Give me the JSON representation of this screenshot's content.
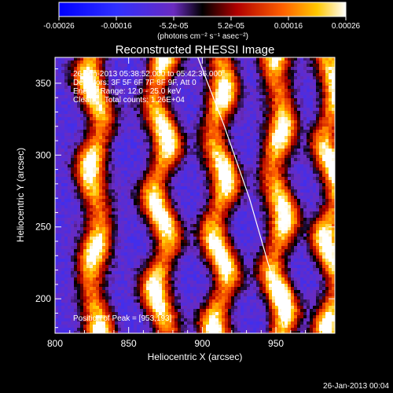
{
  "colorbar": {
    "ticks": [
      "-0.00026",
      "-0.00016",
      "-5.2e-05",
      "5.2e-05",
      "0.00016",
      "0.00026"
    ],
    "units": "(photons cm⁻² s⁻¹ asec⁻²)"
  },
  "chart_data": {
    "type": "heatmap",
    "title": "Reconstructed RHESSI Image",
    "xlabel": "Heliocentric X (arcsec)",
    "ylabel": "Heliocentric Y (arcsec)",
    "xlim": [
      800,
      990
    ],
    "ylim": [
      176,
      368
    ],
    "xticks": [
      "800",
      "850",
      "900",
      "950"
    ],
    "yticks": [
      "200",
      "250",
      "300",
      "350"
    ],
    "x_tick_values": [
      800,
      850,
      900,
      950
    ],
    "y_tick_values": [
      200,
      250,
      300,
      350
    ],
    "annotations": [
      "26-Jan-2013 05:38:52.000 to 05:42:36.000",
      "Detectors: 3F 5F 6F 7F 8F 9F, Att 0",
      "Energy Range: 12.0 - 25.0 keV",
      "Clean     Total counts: 1.26E+04"
    ],
    "peak_label": "Position of Peak = [953,193]",
    "peak": [
      953,
      193
    ],
    "stripe_centers_x": [
      827,
      872,
      912,
      952,
      988
    ],
    "limb_curve": [
      [
        897,
        368
      ],
      [
        915,
        320
      ],
      [
        932,
        270
      ],
      [
        946,
        220
      ],
      [
        955,
        180
      ]
    ]
  },
  "footer": {
    "timestamp": "26-Jan-2013 00:04"
  }
}
